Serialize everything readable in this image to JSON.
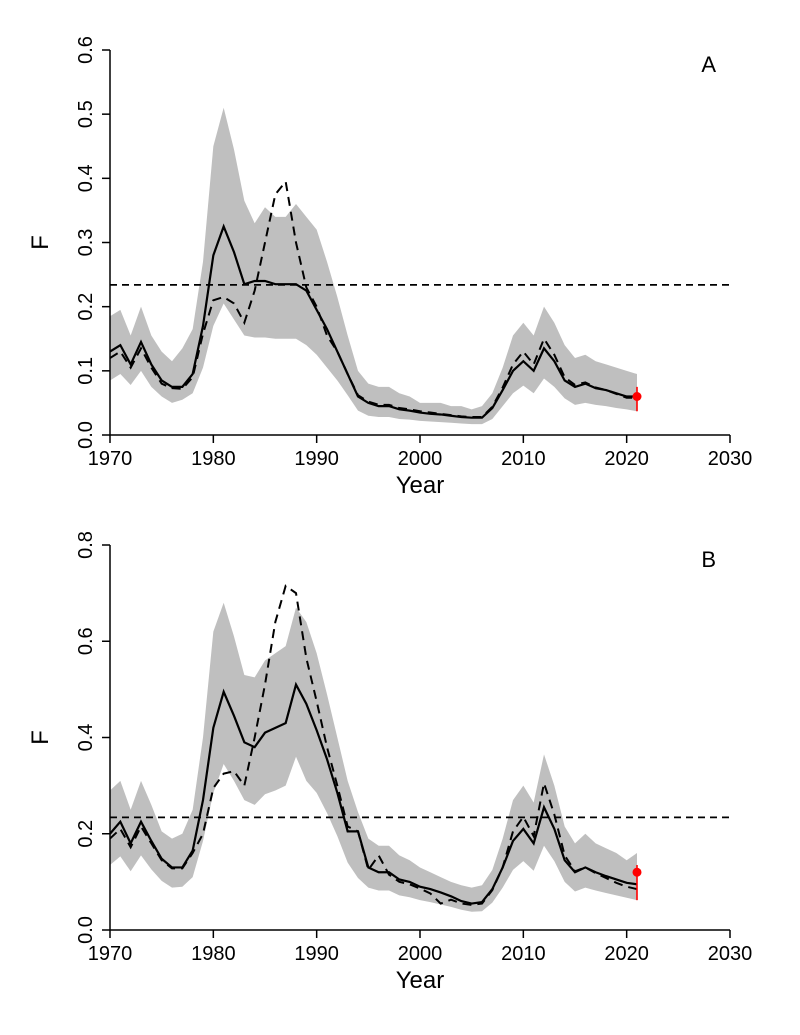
{
  "global": {
    "background_color": "#ffffff",
    "ribbon_color": "#bfbfbf",
    "line_color": "#000000",
    "red_color": "#ff0000",
    "tick_fontsize": 20,
    "axis_fontsize": 24,
    "panel_fontsize": 22,
    "xlabel": "Year",
    "xlim": [
      1970,
      2030
    ],
    "xticks": [
      1970,
      1980,
      1990,
      2000,
      2010,
      2020,
      2030
    ]
  },
  "panelA": {
    "label": "A",
    "ylabel": "F",
    "ylim": [
      0.0,
      0.6
    ],
    "yticks": [
      0.0,
      0.1,
      0.2,
      0.3,
      0.4,
      0.5,
      0.6
    ],
    "reference_y": 0.234,
    "years": [
      1970,
      1971,
      1972,
      1973,
      1974,
      1975,
      1976,
      1977,
      1978,
      1979,
      1980,
      1981,
      1982,
      1983,
      1984,
      1985,
      1986,
      1987,
      1988,
      1989,
      1990,
      1991,
      1992,
      1993,
      1994,
      1995,
      1996,
      1997,
      1998,
      1999,
      2000,
      2001,
      2002,
      2003,
      2004,
      2005,
      2006,
      2007,
      2008,
      2009,
      2010,
      2011,
      2012,
      2013,
      2014,
      2015,
      2016,
      2017,
      2018,
      2019,
      2020,
      2021
    ],
    "upper": [
      0.185,
      0.195,
      0.155,
      0.2,
      0.155,
      0.13,
      0.115,
      0.135,
      0.165,
      0.27,
      0.45,
      0.51,
      0.445,
      0.365,
      0.33,
      0.355,
      0.34,
      0.34,
      0.36,
      0.34,
      0.32,
      0.27,
      0.215,
      0.155,
      0.1,
      0.08,
      0.075,
      0.075,
      0.065,
      0.06,
      0.05,
      0.05,
      0.05,
      0.045,
      0.045,
      0.04,
      0.045,
      0.065,
      0.105,
      0.155,
      0.175,
      0.155,
      0.2,
      0.175,
      0.14,
      0.12,
      0.125,
      0.115,
      0.11,
      0.105,
      0.1,
      0.095
    ],
    "solid": [
      0.13,
      0.14,
      0.11,
      0.145,
      0.11,
      0.085,
      0.075,
      0.075,
      0.095,
      0.17,
      0.28,
      0.325,
      0.285,
      0.235,
      0.24,
      0.24,
      0.235,
      0.235,
      0.235,
      0.225,
      0.195,
      0.165,
      0.13,
      0.095,
      0.06,
      0.05,
      0.045,
      0.045,
      0.04,
      0.038,
      0.035,
      0.033,
      0.032,
      0.03,
      0.028,
      0.027,
      0.027,
      0.042,
      0.07,
      0.1,
      0.115,
      0.1,
      0.135,
      0.115,
      0.085,
      0.075,
      0.08,
      0.073,
      0.07,
      0.065,
      0.06,
      0.06
    ],
    "lower": [
      0.085,
      0.095,
      0.078,
      0.1,
      0.075,
      0.06,
      0.05,
      0.055,
      0.065,
      0.105,
      0.17,
      0.205,
      0.18,
      0.155,
      0.152,
      0.152,
      0.15,
      0.15,
      0.15,
      0.14,
      0.125,
      0.105,
      0.085,
      0.062,
      0.038,
      0.03,
      0.028,
      0.028,
      0.025,
      0.024,
      0.022,
      0.021,
      0.02,
      0.019,
      0.018,
      0.017,
      0.017,
      0.025,
      0.045,
      0.065,
      0.077,
      0.065,
      0.088,
      0.075,
      0.057,
      0.047,
      0.05,
      0.047,
      0.045,
      0.042,
      0.04,
      0.037
    ],
    "dashed": [
      0.12,
      0.13,
      0.105,
      0.135,
      0.105,
      0.08,
      0.073,
      0.072,
      0.09,
      0.158,
      0.21,
      0.215,
      0.205,
      0.175,
      0.225,
      0.3,
      0.375,
      0.395,
      0.3,
      0.23,
      0.2,
      0.155,
      0.13,
      0.095,
      0.062,
      0.052,
      0.047,
      0.047,
      0.042,
      0.04,
      0.037,
      0.035,
      0.033,
      0.031,
      0.029,
      0.028,
      0.028,
      0.044,
      0.074,
      0.11,
      0.13,
      0.11,
      0.15,
      0.125,
      0.09,
      0.078,
      0.082,
      0.074,
      0.07,
      0.064,
      0.058,
      0.058
    ],
    "terminal_point": {
      "year": 2021,
      "value": 0.06,
      "low": 0.037,
      "high": 0.075
    }
  },
  "panelB": {
    "label": "B",
    "ylabel": "F",
    "ylim": [
      0.0,
      0.8
    ],
    "yticks": [
      0.0,
      0.2,
      0.4,
      0.6,
      0.8
    ],
    "reference_y": 0.234,
    "years": [
      1970,
      1971,
      1972,
      1973,
      1974,
      1975,
      1976,
      1977,
      1978,
      1979,
      1980,
      1981,
      1982,
      1983,
      1984,
      1985,
      1986,
      1987,
      1988,
      1989,
      1990,
      1991,
      1992,
      1993,
      1994,
      1995,
      1996,
      1997,
      1998,
      1999,
      2000,
      2001,
      2002,
      2003,
      2004,
      2005,
      2006,
      2007,
      2008,
      2009,
      2010,
      2011,
      2012,
      2013,
      2014,
      2015,
      2016,
      2017,
      2018,
      2019,
      2020,
      2021
    ],
    "upper": [
      0.29,
      0.31,
      0.25,
      0.31,
      0.26,
      0.205,
      0.19,
      0.2,
      0.25,
      0.4,
      0.62,
      0.68,
      0.61,
      0.53,
      0.525,
      0.56,
      0.575,
      0.59,
      0.67,
      0.64,
      0.575,
      0.49,
      0.4,
      0.31,
      0.245,
      0.19,
      0.175,
      0.175,
      0.155,
      0.145,
      0.13,
      0.12,
      0.11,
      0.1,
      0.093,
      0.088,
      0.093,
      0.125,
      0.19,
      0.27,
      0.3,
      0.265,
      0.365,
      0.3,
      0.215,
      0.18,
      0.2,
      0.18,
      0.17,
      0.16,
      0.145,
      0.16
    ],
    "solid": [
      0.2,
      0.225,
      0.18,
      0.225,
      0.185,
      0.148,
      0.13,
      0.13,
      0.165,
      0.27,
      0.42,
      0.495,
      0.445,
      0.39,
      0.38,
      0.41,
      0.42,
      0.43,
      0.51,
      0.47,
      0.415,
      0.355,
      0.285,
      0.205,
      0.205,
      0.13,
      0.12,
      0.12,
      0.105,
      0.1,
      0.09,
      0.085,
      0.078,
      0.07,
      0.06,
      0.055,
      0.058,
      0.085,
      0.13,
      0.185,
      0.21,
      0.18,
      0.255,
      0.21,
      0.145,
      0.12,
      0.13,
      0.12,
      0.112,
      0.105,
      0.098,
      0.095
    ],
    "lower": [
      0.135,
      0.153,
      0.122,
      0.155,
      0.126,
      0.102,
      0.088,
      0.09,
      0.11,
      0.185,
      0.285,
      0.345,
      0.31,
      0.27,
      0.26,
      0.282,
      0.29,
      0.3,
      0.36,
      0.31,
      0.285,
      0.243,
      0.195,
      0.14,
      0.108,
      0.088,
      0.082,
      0.082,
      0.072,
      0.068,
      0.062,
      0.058,
      0.053,
      0.048,
      0.042,
      0.038,
      0.039,
      0.057,
      0.088,
      0.125,
      0.143,
      0.123,
      0.175,
      0.143,
      0.1,
      0.08,
      0.088,
      0.082,
      0.077,
      0.072,
      0.067,
      0.062
    ],
    "dashed": [
      0.19,
      0.21,
      0.172,
      0.215,
      0.18,
      0.145,
      0.128,
      0.128,
      0.16,
      0.2,
      0.295,
      0.325,
      0.33,
      0.3,
      0.4,
      0.51,
      0.64,
      0.715,
      0.7,
      0.565,
      0.475,
      0.38,
      0.3,
      0.215,
      0.205,
      0.125,
      0.155,
      0.115,
      0.1,
      0.095,
      0.086,
      0.076,
      0.055,
      0.063,
      0.055,
      0.052,
      0.055,
      0.083,
      0.13,
      0.205,
      0.235,
      0.195,
      0.305,
      0.24,
      0.155,
      0.122,
      0.13,
      0.118,
      0.108,
      0.098,
      0.09,
      0.085
    ],
    "terminal_point": {
      "year": 2021,
      "value": 0.12,
      "low": 0.062,
      "high": 0.135
    }
  }
}
